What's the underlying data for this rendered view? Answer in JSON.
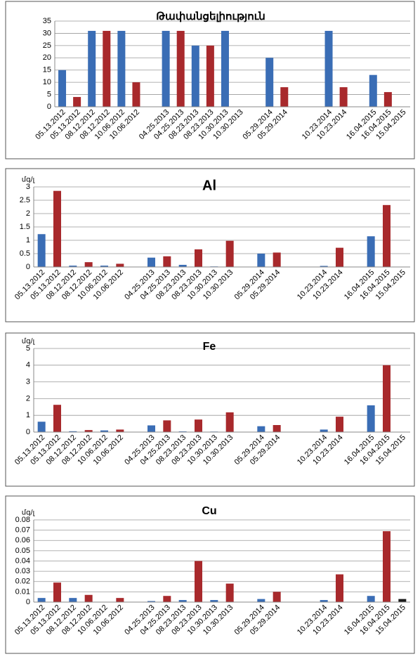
{
  "chart_data": [
    {
      "type": "bar",
      "title": "Թափանցելիություն",
      "categories": [
        "05.13.2012",
        "05.13.2012",
        "08.12.2012",
        "08.12.2012",
        "10.06.2012",
        "10.06.2012",
        null,
        "04.25.2013",
        "04.25.2013",
        "08.23.2013",
        "08.23.2013",
        "10.30.2013",
        "10.30.2013",
        null,
        "05.29.2014",
        "05.29.2014",
        null,
        null,
        "10.23.2014",
        "10.23.2014",
        null,
        "16.04.2015",
        "16.04.2015",
        "15.04.2015"
      ],
      "values": [
        15,
        4,
        31,
        31,
        31,
        10,
        null,
        31,
        31,
        25,
        25,
        31,
        null,
        null,
        20,
        8,
        null,
        null,
        31,
        8,
        null,
        13,
        6,
        null
      ],
      "colors": [
        "#3a6db5",
        "#a8292c",
        "#3a6db5",
        "#a8292c",
        "#3a6db5",
        "#a8292c",
        null,
        "#3a6db5",
        "#a8292c",
        "#3a6db5",
        "#a8292c",
        "#3a6db5",
        null,
        null,
        "#3a6db5",
        "#a8292c",
        null,
        null,
        "#3a6db5",
        "#a8292c",
        null,
        "#3a6db5",
        "#a8292c",
        null
      ],
      "ylim": [
        0,
        35
      ],
      "yticks": [
        0,
        5,
        10,
        15,
        20,
        25,
        30,
        35
      ],
      "grid": true
    },
    {
      "type": "bar",
      "title": "Al",
      "y_label": "մգ/լ",
      "categories": [
        "05.13.2012",
        "05.13.2012",
        "08.12.2012",
        "08.12.2012",
        "10.06.2012",
        "10.06.2012",
        null,
        "04.25.2013",
        "04.25.2013",
        "08.23.2013",
        "08.23.2013",
        "10.30.2013",
        "10.30.2013",
        null,
        "05.29.2014",
        "05.29.2014",
        null,
        null,
        "10.23.2014",
        "10.23.2014",
        null,
        "16.04.2015",
        "16.04.2015",
        "15.04.2015"
      ],
      "values": [
        1.23,
        2.85,
        0.05,
        0.18,
        0.05,
        0.12,
        null,
        0.35,
        0.4,
        0.08,
        0.66,
        0.02,
        0.98,
        null,
        0.5,
        0.54,
        null,
        null,
        0.04,
        0.72,
        null,
        1.15,
        2.32,
        null
      ],
      "colors": [
        "#3a6db5",
        "#a8292c",
        "#3a6db5",
        "#a8292c",
        "#3a6db5",
        "#a8292c",
        null,
        "#3a6db5",
        "#a8292c",
        "#3a6db5",
        "#a8292c",
        "#3a6db5",
        "#a8292c",
        null,
        "#3a6db5",
        "#a8292c",
        null,
        null,
        "#3a6db5",
        "#a8292c",
        null,
        "#3a6db5",
        "#a8292c",
        null
      ],
      "ylim": [
        0,
        3
      ],
      "yticks": [
        0,
        0.5,
        1,
        1.5,
        2,
        2.5,
        3
      ],
      "grid": true
    },
    {
      "type": "bar",
      "title": "Fe",
      "y_label": "մգ/լ",
      "categories": [
        "05.13.2012",
        "05.13.2012",
        "08.12.2012",
        "08.12.2012",
        "10.06.2012",
        "10.06.2012",
        null,
        "04.25.2013",
        "04.25.2013",
        "08.23.2013",
        "08.23.2013",
        "10.30.2013",
        "10.30.2013",
        null,
        "05.29.2014",
        "05.29.2014",
        null,
        null,
        "10.23.2014",
        "10.23.2014",
        null,
        "16.04.2015",
        "16.04.2015",
        "15.04.2015"
      ],
      "values": [
        0.62,
        1.63,
        0.05,
        0.12,
        0.1,
        0.15,
        null,
        0.4,
        0.7,
        0.04,
        0.75,
        0.03,
        1.18,
        null,
        0.35,
        0.42,
        null,
        null,
        0.15,
        0.92,
        null,
        1.6,
        4.0,
        null
      ],
      "colors": [
        "#3a6db5",
        "#a8292c",
        "#3a6db5",
        "#a8292c",
        "#3a6db5",
        "#a8292c",
        null,
        "#3a6db5",
        "#a8292c",
        "#3a6db5",
        "#a8292c",
        "#3a6db5",
        "#a8292c",
        null,
        "#3a6db5",
        "#a8292c",
        null,
        null,
        "#3a6db5",
        "#a8292c",
        null,
        "#3a6db5",
        "#a8292c",
        null
      ],
      "ylim": [
        0,
        5
      ],
      "yticks": [
        0,
        1,
        2,
        3,
        4,
        5
      ],
      "grid": true
    },
    {
      "type": "bar",
      "title": "Cu",
      "y_label": "մգ/լ",
      "categories": [
        "05.13.2012",
        "05.13.2012",
        "08.12.2012",
        "08.12.2012",
        "10.06.2012",
        "10.06.2012",
        null,
        "04.25.2013",
        "04.25.2013",
        "08.23.2013",
        "08.23.2013",
        "10.30.2013",
        "10.30.2013",
        null,
        "05.29.2014",
        "05.29.2014",
        null,
        null,
        "10.23.2014",
        "10.23.2014",
        null,
        "16.04.2015",
        "16.04.2015",
        "15.04.2015"
      ],
      "values": [
        0.004,
        0.019,
        0.004,
        0.007,
        null,
        0.004,
        null,
        0.001,
        0.006,
        0.002,
        0.04,
        0.002,
        0.018,
        null,
        0.003,
        0.01,
        null,
        null,
        0.002,
        0.027,
        null,
        0.006,
        0.069,
        0.003
      ],
      "colors": [
        "#3a6db5",
        "#a8292c",
        "#3a6db5",
        "#a8292c",
        null,
        "#a8292c",
        null,
        "#3a6db5",
        "#a8292c",
        "#3a6db5",
        "#a8292c",
        "#3a6db5",
        "#a8292c",
        null,
        "#3a6db5",
        "#a8292c",
        null,
        null,
        "#3a6db5",
        "#a8292c",
        null,
        "#3a6db5",
        "#a8292c",
        "#1a1a1a"
      ],
      "ylim": [
        0,
        0.08
      ],
      "yticks": [
        0,
        0.01,
        0.02,
        0.03,
        0.04,
        0.05,
        0.06,
        0.07,
        0.08
      ],
      "grid": true
    }
  ]
}
